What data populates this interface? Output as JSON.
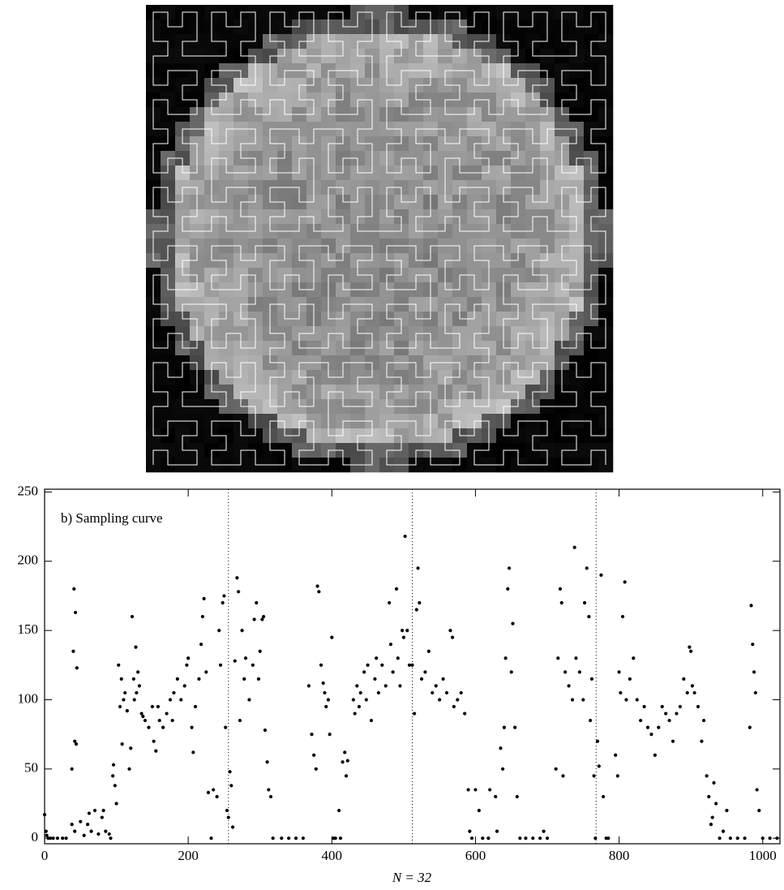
{
  "chart_data": {
    "type": "scatter",
    "annotation": "b) Sampling curve",
    "x_label": "N = 32",
    "xlim": [
      0,
      1024
    ],
    "xticks": [
      0,
      200,
      400,
      600,
      800,
      1000
    ],
    "ylim": [
      -4,
      252
    ],
    "yticks": [
      0,
      50,
      100,
      150,
      200,
      250
    ],
    "vlines": [
      256,
      512,
      768
    ],
    "color": "#000000",
    "x": [
      0,
      2,
      3,
      5,
      8,
      12,
      18,
      25,
      30,
      38,
      40,
      41,
      42,
      43,
      45,
      44,
      38,
      42,
      50,
      55,
      60,
      62,
      65,
      70,
      75,
      80,
      82,
      85,
      90,
      92,
      95,
      96,
      98,
      100,
      103,
      105,
      107,
      108,
      110,
      112,
      115,
      118,
      120,
      122,
      124,
      125,
      127,
      128,
      130,
      132,
      135,
      137,
      140,
      145,
      150,
      152,
      155,
      158,
      160,
      165,
      170,
      175,
      178,
      180,
      185,
      190,
      195,
      198,
      200,
      205,
      207,
      210,
      215,
      218,
      220,
      222,
      225,
      228,
      232,
      235,
      240,
      243,
      245,
      248,
      250,
      252,
      254,
      256,
      258,
      260,
      262,
      265,
      268,
      270,
      272,
      275,
      278,
      280,
      285,
      290,
      292,
      295,
      298,
      300,
      303,
      305,
      307,
      310,
      312,
      315,
      318,
      330,
      340,
      350,
      360,
      368,
      372,
      375,
      378,
      380,
      382,
      385,
      388,
      390,
      392,
      395,
      397,
      400,
      402,
      405,
      410,
      412,
      415,
      418,
      420,
      422,
      430,
      432,
      435,
      438,
      440,
      445,
      448,
      450,
      455,
      460,
      462,
      465,
      470,
      475,
      480,
      482,
      485,
      490,
      492,
      495,
      498,
      500,
      502,
      505,
      508,
      512,
      515,
      518,
      520,
      522,
      525,
      530,
      535,
      540,
      545,
      550,
      555,
      560,
      565,
      568,
      570,
      575,
      580,
      585,
      590,
      592,
      595,
      600,
      605,
      610,
      618,
      620,
      628,
      630,
      635,
      638,
      640,
      642,
      645,
      647,
      650,
      652,
      655,
      658,
      662,
      670,
      680,
      690,
      695,
      700,
      712,
      715,
      718,
      720,
      722,
      725,
      730,
      735,
      738,
      740,
      745,
      750,
      752,
      755,
      758,
      760,
      762,
      765,
      767,
      770,
      772,
      775,
      778,
      782,
      785,
      795,
      798,
      800,
      802,
      805,
      808,
      810,
      815,
      820,
      825,
      830,
      835,
      840,
      845,
      850,
      855,
      860,
      865,
      870,
      875,
      880,
      885,
      890,
      895,
      898,
      900,
      902,
      905,
      910,
      915,
      918,
      922,
      925,
      928,
      930,
      932,
      935,
      940,
      945,
      950,
      955,
      965,
      975,
      982,
      984,
      986,
      988,
      990,
      992,
      995,
      1000,
      1010,
      1020
    ],
    "y": [
      17,
      5,
      2,
      0,
      0,
      0,
      0,
      0,
      0,
      50,
      135,
      180,
      70,
      163,
      123,
      68,
      10,
      5,
      12,
      2,
      10,
      18,
      5,
      20,
      3,
      15,
      20,
      5,
      3,
      0,
      45,
      53,
      38,
      25,
      125,
      95,
      115,
      68,
      100,
      105,
      92,
      50,
      65,
      160,
      115,
      100,
      138,
      105,
      120,
      110,
      90,
      88,
      85,
      80,
      95,
      70,
      63,
      95,
      85,
      80,
      90,
      100,
      85,
      105,
      115,
      100,
      110,
      125,
      130,
      80,
      62,
      95,
      115,
      140,
      160,
      173,
      120,
      33,
      0,
      35,
      30,
      150,
      125,
      170,
      175,
      80,
      20,
      15,
      48,
      38,
      8,
      128,
      188,
      178,
      85,
      150,
      115,
      130,
      100,
      125,
      158,
      170,
      115,
      135,
      158,
      160,
      78,
      55,
      35,
      30,
      0,
      0,
      0,
      0,
      0,
      110,
      75,
      60,
      50,
      182,
      178,
      125,
      112,
      105,
      95,
      100,
      75,
      145,
      0,
      0,
      20,
      0,
      55,
      62,
      45,
      56,
      100,
      90,
      110,
      95,
      105,
      120,
      100,
      125,
      85,
      115,
      130,
      105,
      125,
      110,
      170,
      140,
      120,
      180,
      130,
      110,
      150,
      145,
      218,
      150,
      125,
      125,
      90,
      165,
      195,
      170,
      115,
      120,
      135,
      105,
      110,
      100,
      115,
      105,
      150,
      145,
      95,
      100,
      105,
      90,
      35,
      5,
      0,
      35,
      20,
      0,
      0,
      35,
      30,
      5,
      65,
      50,
      80,
      130,
      180,
      195,
      120,
      155,
      80,
      30,
      0,
      0,
      0,
      0,
      5,
      0,
      50,
      130,
      180,
      170,
      45,
      120,
      110,
      100,
      210,
      130,
      120,
      100,
      170,
      195,
      160,
      85,
      115,
      45,
      0,
      70,
      52,
      190,
      30,
      0,
      0,
      60,
      45,
      120,
      105,
      160,
      185,
      100,
      115,
      130,
      100,
      85,
      95,
      80,
      75,
      60,
      80,
      95,
      90,
      85,
      70,
      90,
      95,
      115,
      105,
      138,
      135,
      110,
      105,
      95,
      70,
      85,
      45,
      30,
      10,
      15,
      40,
      25,
      0,
      5,
      20,
      0,
      0,
      0,
      80,
      168,
      140,
      120,
      105,
      35,
      20,
      0,
      0,
      0
    ]
  }
}
